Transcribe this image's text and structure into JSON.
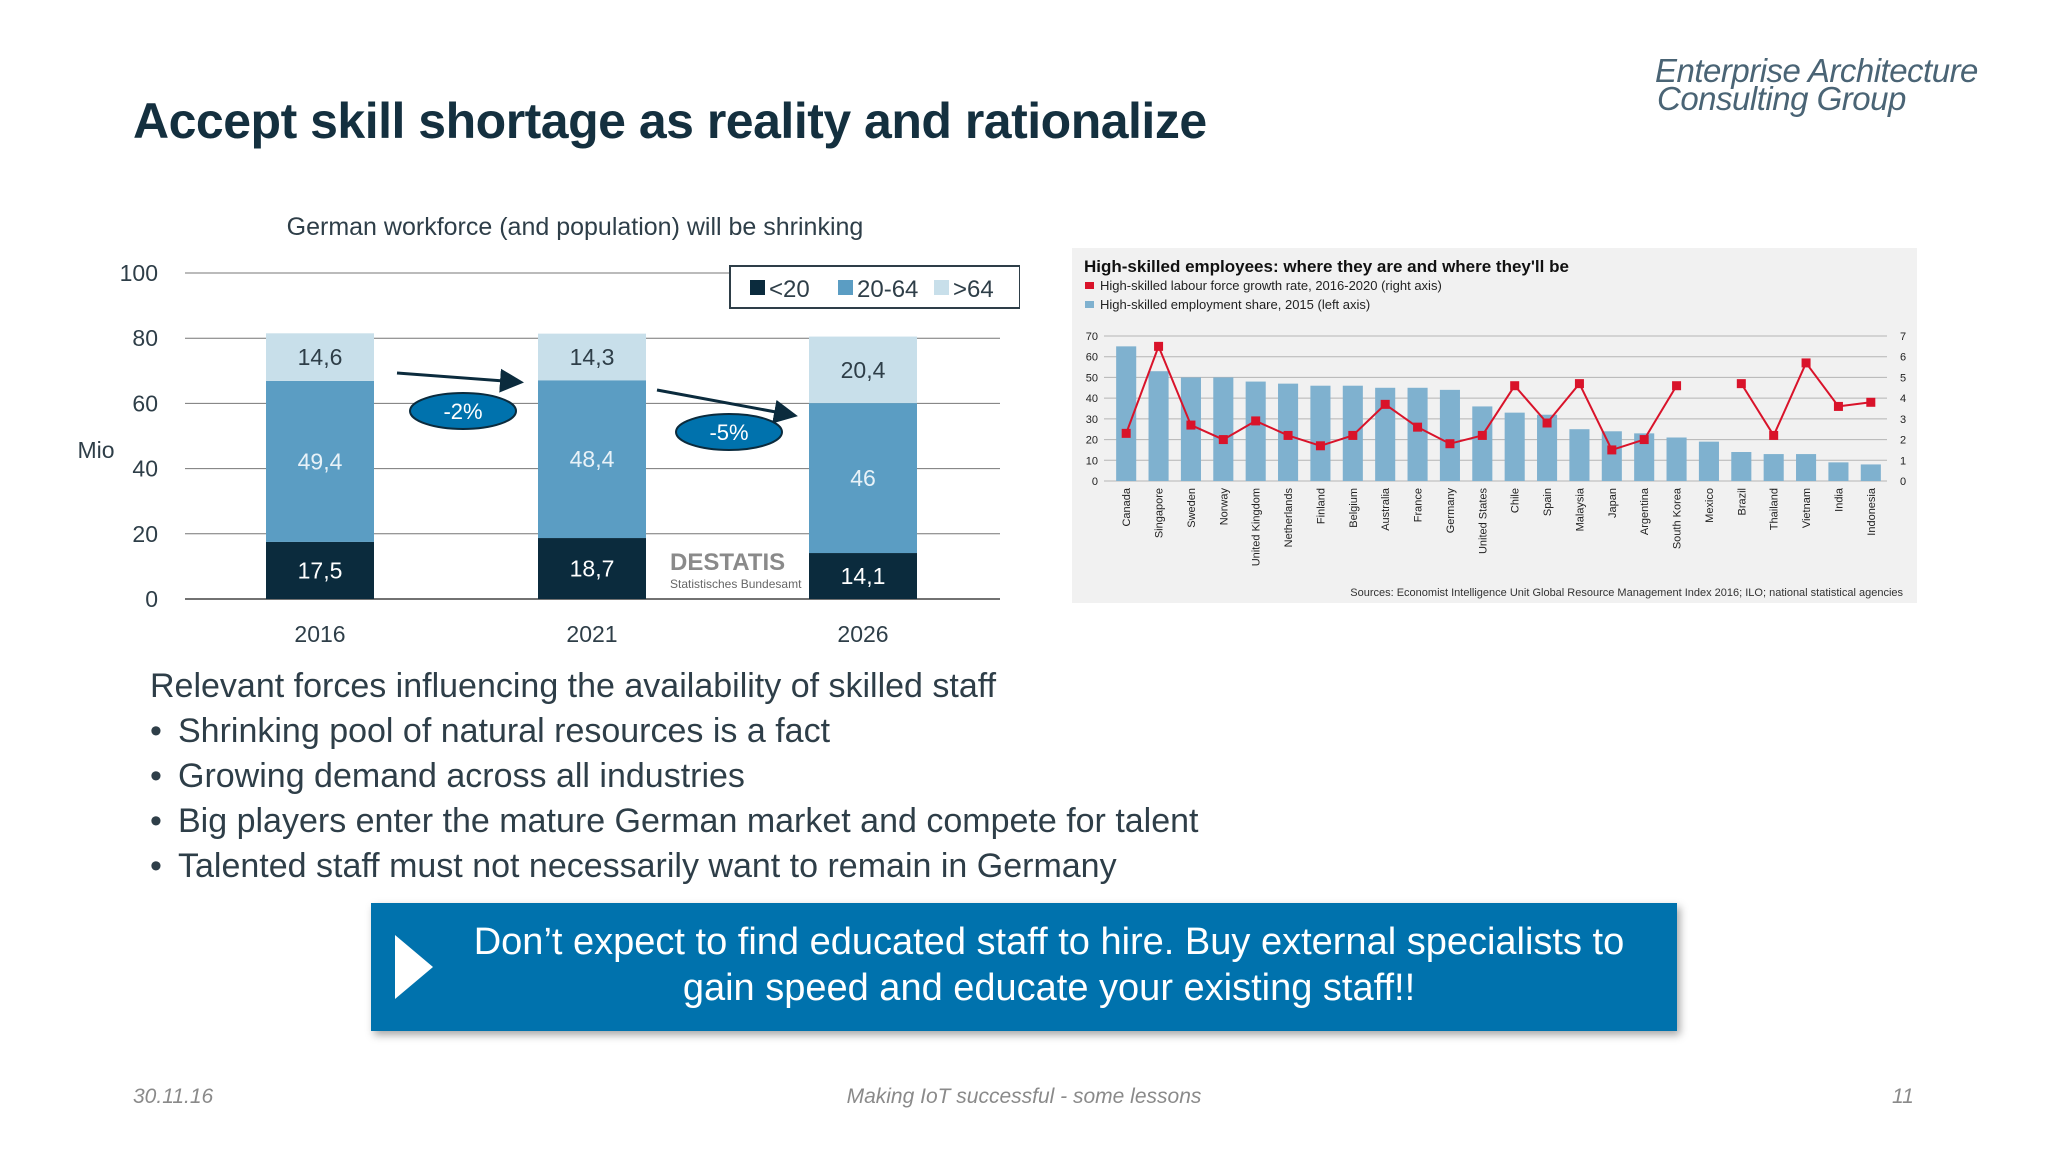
{
  "slide": {
    "title": "Accept skill shortage as reality and rationalize",
    "logo": {
      "line1": "Enterprise Architecture",
      "line2": "Consulting Group"
    }
  },
  "chart_data": [
    {
      "type": "bar",
      "title": "German workforce (and population) will be shrinking",
      "ylabel": "Mio",
      "ylim": [
        0,
        100
      ],
      "yticks": [
        0,
        20,
        40,
        60,
        80,
        100
      ],
      "categories": [
        "2016",
        "2021",
        "2026"
      ],
      "series": [
        {
          "name": "<20",
          "values": [
            17.5,
            18.7,
            14.1
          ],
          "labels": [
            "17,5",
            "18,7",
            "14,1"
          ],
          "color": "#0b2b3d"
        },
        {
          "name": "20-64",
          "values": [
            49.4,
            48.4,
            46
          ],
          "labels": [
            "49,4",
            "48,4",
            "46"
          ],
          "color": "#5b9dc3"
        },
        {
          "name": ">64",
          "values": [
            14.6,
            14.3,
            20.4
          ],
          "labels": [
            "14,6",
            "14,3",
            "20,4"
          ],
          "color": "#c8dfea"
        }
      ],
      "stacked": true,
      "legend": "top-right",
      "annotations": [
        "-2%",
        "-5%"
      ],
      "watermark": {
        "brand": "DESTATIS",
        "sub": "Statistisches Bundesamt"
      }
    },
    {
      "type": "bar",
      "title": "High-skilled employees: where they are and where they'll be",
      "categories": [
        "Canada",
        "Singapore",
        "Sweden",
        "Norway",
        "United Kingdom",
        "Netherlands",
        "Finland",
        "Belgium",
        "Australia",
        "France",
        "Germany",
        "United States",
        "Chile",
        "Spain",
        "Malaysia",
        "Japan",
        "Argentina",
        "South Korea",
        "Mexico",
        "Brazil",
        "Thailand",
        "Vietnam",
        "India",
        "Indonesia"
      ],
      "series": [
        {
          "name": "High-skilled employment share, 2015 (left axis)",
          "type": "bar",
          "axis": "left",
          "values": [
            65,
            53,
            50,
            50,
            48,
            47,
            46,
            46,
            45,
            45,
            44,
            36,
            33,
            32,
            25,
            24,
            23,
            21,
            19,
            14,
            13,
            13,
            9,
            8
          ],
          "color": "#7fb1cf"
        },
        {
          "name": "High-skilled labour force growth rate, 2016-2020 (right axis)",
          "type": "line",
          "axis": "right",
          "values": [
            2.3,
            6.5,
            2.7,
            2.0,
            2.9,
            2.2,
            1.7,
            2.2,
            3.7,
            2.6,
            1.8,
            2.2,
            4.6,
            2.8,
            4.7,
            1.5,
            2.0,
            4.6,
            null,
            4.7,
            2.2,
            5.7,
            3.6,
            3.8
          ],
          "color": "#d9132a"
        }
      ],
      "ylim_left": [
        0,
        70
      ],
      "yticks_left": [
        0,
        10,
        20,
        30,
        40,
        50,
        60,
        70
      ],
      "ylim_right": [
        0,
        7
      ],
      "yticks_right": [
        0,
        1,
        2,
        3,
        4,
        5,
        6,
        7
      ],
      "legend": "top-left",
      "source": "Sources: Economist Intelligence Unit Global Resource Management Index 2016; ILO; national statistical agencies"
    }
  ],
  "text": {
    "heading": "Relevant forces influencing the availability of skilled staff",
    "bullets": [
      "Shrinking pool of natural resources is a fact",
      "Growing demand across all industries",
      "Big players enter the mature German market and compete for talent",
      "Talented staff must not necessarily want to remain in Germany"
    ]
  },
  "banner": {
    "line1": "Don’t expect to find educated staff to hire. Buy external specialists to",
    "line2": "gain speed and educate your existing staff!!"
  },
  "footer": {
    "date": "30.11.16",
    "center": "Making IoT successful - some lessons",
    "page": "11"
  }
}
